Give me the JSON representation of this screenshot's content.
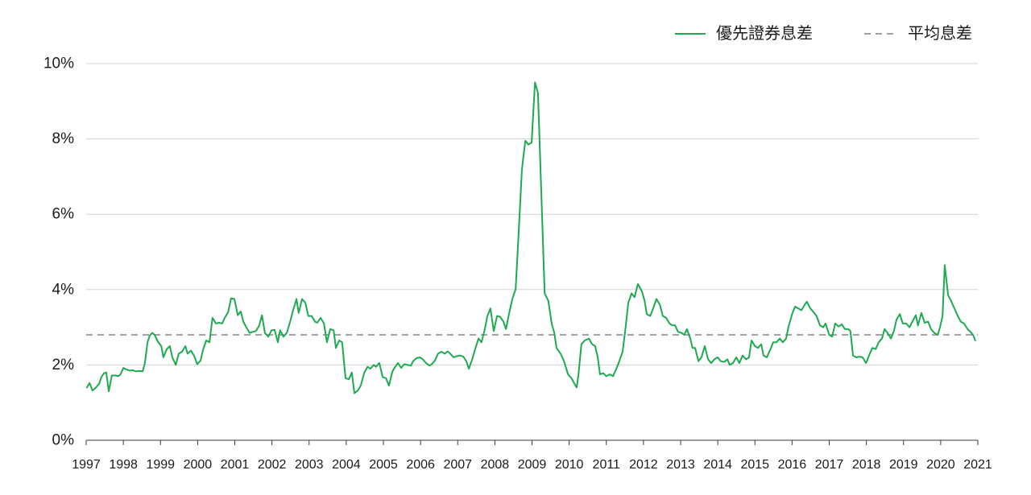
{
  "colors": {
    "grid": "#d2d2d2",
    "axis": "#3a3a3a",
    "text": "#1a1a1a"
  },
  "chart_data": {
    "type": "line",
    "xlim": [
      1997,
      2021
    ],
    "ylim": [
      0,
      10
    ],
    "x_ticks": [
      "1997",
      "1998",
      "1999",
      "2000",
      "2001",
      "2002",
      "2003",
      "2004",
      "2005",
      "2006",
      "2007",
      "2008",
      "2009",
      "2010",
      "2011",
      "2012",
      "2013",
      "2014",
      "2015",
      "2016",
      "2017",
      "2018",
      "2019",
      "2020",
      "2021"
    ],
    "y_ticks": [
      "0%",
      "2%",
      "4%",
      "6%",
      "8%",
      "10%"
    ],
    "grid": true,
    "legend_position": "top-right",
    "series": [
      {
        "name": "優先證券息差",
        "style": "solid",
        "color": "#1eaa50",
        "points": [
          [
            1997.02,
            1.4
          ],
          [
            1997.09,
            1.52
          ],
          [
            1997.17,
            1.32
          ],
          [
            1997.26,
            1.4
          ],
          [
            1997.35,
            1.5
          ],
          [
            1997.41,
            1.68
          ],
          [
            1997.48,
            1.78
          ],
          [
            1997.54,
            1.8
          ],
          [
            1997.61,
            1.3
          ],
          [
            1997.69,
            1.72
          ],
          [
            1997.78,
            1.72
          ],
          [
            1997.87,
            1.7
          ],
          [
            1997.93,
            1.76
          ],
          [
            1998.0,
            1.92
          ],
          [
            1998.08,
            1.88
          ],
          [
            1998.17,
            1.85
          ],
          [
            1998.26,
            1.86
          ],
          [
            1998.34,
            1.83
          ],
          [
            1998.43,
            1.84
          ],
          [
            1998.52,
            1.83
          ],
          [
            1998.58,
            2.05
          ],
          [
            1998.65,
            2.6
          ],
          [
            1998.71,
            2.78
          ],
          [
            1998.78,
            2.85
          ],
          [
            1998.84,
            2.8
          ],
          [
            1998.93,
            2.62
          ],
          [
            1999.02,
            2.5
          ],
          [
            1999.08,
            2.2
          ],
          [
            1999.17,
            2.42
          ],
          [
            1999.25,
            2.5
          ],
          [
            1999.32,
            2.2
          ],
          [
            1999.41,
            2.0
          ],
          [
            1999.49,
            2.3
          ],
          [
            1999.58,
            2.35
          ],
          [
            1999.67,
            2.5
          ],
          [
            1999.73,
            2.3
          ],
          [
            1999.82,
            2.38
          ],
          [
            1999.9,
            2.25
          ],
          [
            1999.99,
            2.02
          ],
          [
            2000.08,
            2.12
          ],
          [
            2000.14,
            2.38
          ],
          [
            2000.23,
            2.65
          ],
          [
            2000.32,
            2.6
          ],
          [
            2000.4,
            3.25
          ],
          [
            2000.49,
            3.1
          ],
          [
            2000.58,
            3.12
          ],
          [
            2000.66,
            3.1
          ],
          [
            2000.73,
            3.25
          ],
          [
            2000.82,
            3.4
          ],
          [
            2000.9,
            3.77
          ],
          [
            2000.99,
            3.75
          ],
          [
            2001.08,
            3.32
          ],
          [
            2001.16,
            3.42
          ],
          [
            2001.23,
            3.15
          ],
          [
            2001.31,
            3.0
          ],
          [
            2001.4,
            2.85
          ],
          [
            2001.49,
            2.88
          ],
          [
            2001.57,
            2.9
          ],
          [
            2001.66,
            3.05
          ],
          [
            2001.73,
            3.32
          ],
          [
            2001.81,
            2.85
          ],
          [
            2001.9,
            2.75
          ],
          [
            2001.99,
            2.92
          ],
          [
            2002.07,
            2.93
          ],
          [
            2002.16,
            2.6
          ],
          [
            2002.22,
            2.92
          ],
          [
            2002.31,
            2.75
          ],
          [
            2002.4,
            2.85
          ],
          [
            2002.49,
            3.15
          ],
          [
            2002.57,
            3.45
          ],
          [
            2002.66,
            3.75
          ],
          [
            2002.72,
            3.38
          ],
          [
            2002.81,
            3.75
          ],
          [
            2002.9,
            3.65
          ],
          [
            2002.98,
            3.3
          ],
          [
            2003.07,
            3.3
          ],
          [
            2003.16,
            3.15
          ],
          [
            2003.22,
            3.12
          ],
          [
            2003.31,
            3.25
          ],
          [
            2003.4,
            3.1
          ],
          [
            2003.48,
            2.6
          ],
          [
            2003.57,
            2.95
          ],
          [
            2003.66,
            2.92
          ],
          [
            2003.72,
            2.45
          ],
          [
            2003.81,
            2.65
          ],
          [
            2003.89,
            2.6
          ],
          [
            2003.98,
            1.65
          ],
          [
            2004.07,
            1.62
          ],
          [
            2004.15,
            1.8
          ],
          [
            2004.22,
            1.25
          ],
          [
            2004.31,
            1.32
          ],
          [
            2004.39,
            1.45
          ],
          [
            2004.48,
            1.78
          ],
          [
            2004.57,
            1.95
          ],
          [
            2004.65,
            1.9
          ],
          [
            2004.74,
            2.0
          ],
          [
            2004.8,
            1.95
          ],
          [
            2004.89,
            2.05
          ],
          [
            2004.98,
            1.68
          ],
          [
            2005.07,
            1.65
          ],
          [
            2005.15,
            1.45
          ],
          [
            2005.24,
            1.82
          ],
          [
            2005.3,
            1.92
          ],
          [
            2005.39,
            2.05
          ],
          [
            2005.48,
            1.92
          ],
          [
            2005.56,
            2.02
          ],
          [
            2005.65,
            2.0
          ],
          [
            2005.74,
            1.98
          ],
          [
            2005.8,
            2.1
          ],
          [
            2005.89,
            2.18
          ],
          [
            2005.98,
            2.2
          ],
          [
            2006.06,
            2.15
          ],
          [
            2006.15,
            2.05
          ],
          [
            2006.24,
            1.98
          ],
          [
            2006.3,
            2.02
          ],
          [
            2006.39,
            2.12
          ],
          [
            2006.47,
            2.3
          ],
          [
            2006.56,
            2.35
          ],
          [
            2006.65,
            2.3
          ],
          [
            2006.73,
            2.36
          ],
          [
            2006.8,
            2.3
          ],
          [
            2006.89,
            2.2
          ],
          [
            2006.97,
            2.23
          ],
          [
            2007.06,
            2.25
          ],
          [
            2007.15,
            2.22
          ],
          [
            2007.23,
            2.1
          ],
          [
            2007.3,
            1.9
          ],
          [
            2007.38,
            2.12
          ],
          [
            2007.47,
            2.42
          ],
          [
            2007.56,
            2.7
          ],
          [
            2007.64,
            2.6
          ],
          [
            2007.73,
            2.95
          ],
          [
            2007.8,
            3.3
          ],
          [
            2007.88,
            3.5
          ],
          [
            2007.97,
            2.9
          ],
          [
            2008.06,
            3.3
          ],
          [
            2008.14,
            3.28
          ],
          [
            2008.23,
            3.15
          ],
          [
            2008.3,
            2.95
          ],
          [
            2008.38,
            3.35
          ],
          [
            2008.47,
            3.75
          ],
          [
            2008.56,
            4.02
          ],
          [
            2008.64,
            5.5
          ],
          [
            2008.73,
            7.2
          ],
          [
            2008.82,
            7.95
          ],
          [
            2008.9,
            7.85
          ],
          [
            2008.99,
            7.9
          ],
          [
            2009.08,
            9.5
          ],
          [
            2009.16,
            9.22
          ],
          [
            2009.25,
            6.6
          ],
          [
            2009.34,
            3.9
          ],
          [
            2009.44,
            3.7
          ],
          [
            2009.53,
            3.1
          ],
          [
            2009.6,
            2.85
          ],
          [
            2009.66,
            2.45
          ],
          [
            2009.77,
            2.3
          ],
          [
            2009.86,
            2.1
          ],
          [
            2009.97,
            1.75
          ],
          [
            2010.06,
            1.65
          ],
          [
            2010.2,
            1.4
          ],
          [
            2010.25,
            1.75
          ],
          [
            2010.33,
            2.55
          ],
          [
            2010.42,
            2.65
          ],
          [
            2010.53,
            2.7
          ],
          [
            2010.62,
            2.55
          ],
          [
            2010.7,
            2.5
          ],
          [
            2010.77,
            2.2
          ],
          [
            2010.83,
            1.75
          ],
          [
            2010.92,
            1.78
          ],
          [
            2011.0,
            1.7
          ],
          [
            2011.09,
            1.75
          ],
          [
            2011.18,
            1.7
          ],
          [
            2011.27,
            1.9
          ],
          [
            2011.35,
            2.1
          ],
          [
            2011.44,
            2.35
          ],
          [
            2011.52,
            3.0
          ],
          [
            2011.59,
            3.65
          ],
          [
            2011.68,
            3.9
          ],
          [
            2011.76,
            3.8
          ],
          [
            2011.85,
            4.15
          ],
          [
            2011.96,
            3.95
          ],
          [
            2012.03,
            3.7
          ],
          [
            2012.09,
            3.35
          ],
          [
            2012.18,
            3.3
          ],
          [
            2012.26,
            3.5
          ],
          [
            2012.35,
            3.75
          ],
          [
            2012.44,
            3.6
          ],
          [
            2012.52,
            3.3
          ],
          [
            2012.61,
            3.25
          ],
          [
            2012.7,
            3.1
          ],
          [
            2012.78,
            3.05
          ],
          [
            2012.85,
            3.05
          ],
          [
            2012.93,
            2.88
          ],
          [
            2013.02,
            2.85
          ],
          [
            2013.1,
            2.8
          ],
          [
            2013.17,
            2.95
          ],
          [
            2013.26,
            2.7
          ],
          [
            2013.32,
            2.45
          ],
          [
            2013.39,
            2.45
          ],
          [
            2013.48,
            2.1
          ],
          [
            2013.56,
            2.2
          ],
          [
            2013.65,
            2.5
          ],
          [
            2013.74,
            2.15
          ],
          [
            2013.82,
            2.05
          ],
          [
            2013.91,
            2.15
          ],
          [
            2014.0,
            2.2
          ],
          [
            2014.08,
            2.1
          ],
          [
            2014.17,
            2.08
          ],
          [
            2014.26,
            2.15
          ],
          [
            2014.32,
            2.0
          ],
          [
            2014.41,
            2.05
          ],
          [
            2014.5,
            2.2
          ],
          [
            2014.58,
            2.05
          ],
          [
            2014.67,
            2.25
          ],
          [
            2014.76,
            2.15
          ],
          [
            2014.84,
            2.2
          ],
          [
            2014.91,
            2.65
          ],
          [
            2015.0,
            2.5
          ],
          [
            2015.08,
            2.45
          ],
          [
            2015.17,
            2.55
          ],
          [
            2015.23,
            2.25
          ],
          [
            2015.32,
            2.2
          ],
          [
            2015.41,
            2.4
          ],
          [
            2015.49,
            2.6
          ],
          [
            2015.58,
            2.6
          ],
          [
            2015.67,
            2.7
          ],
          [
            2015.75,
            2.6
          ],
          [
            2015.84,
            2.7
          ],
          [
            2015.9,
            3.0
          ],
          [
            2016.0,
            3.35
          ],
          [
            2016.08,
            3.55
          ],
          [
            2016.17,
            3.5
          ],
          [
            2016.25,
            3.45
          ],
          [
            2016.34,
            3.6
          ],
          [
            2016.4,
            3.68
          ],
          [
            2016.49,
            3.5
          ],
          [
            2016.58,
            3.4
          ],
          [
            2016.66,
            3.3
          ],
          [
            2016.75,
            3.05
          ],
          [
            2016.84,
            3.0
          ],
          [
            2016.9,
            3.1
          ],
          [
            2017.0,
            2.8
          ],
          [
            2017.08,
            2.75
          ],
          [
            2017.16,
            3.1
          ],
          [
            2017.25,
            3.02
          ],
          [
            2017.34,
            3.08
          ],
          [
            2017.42,
            2.95
          ],
          [
            2017.51,
            2.95
          ],
          [
            2017.57,
            2.9
          ],
          [
            2017.64,
            2.25
          ],
          [
            2017.73,
            2.2
          ],
          [
            2017.81,
            2.22
          ],
          [
            2017.9,
            2.2
          ],
          [
            2017.99,
            2.05
          ],
          [
            2018.07,
            2.25
          ],
          [
            2018.16,
            2.45
          ],
          [
            2018.25,
            2.42
          ],
          [
            2018.33,
            2.6
          ],
          [
            2018.42,
            2.7
          ],
          [
            2018.49,
            2.95
          ],
          [
            2018.57,
            2.85
          ],
          [
            2018.66,
            2.7
          ],
          [
            2018.74,
            2.9
          ],
          [
            2018.81,
            3.2
          ],
          [
            2018.9,
            3.35
          ],
          [
            2018.98,
            3.1
          ],
          [
            2019.07,
            3.1
          ],
          [
            2019.16,
            3.0
          ],
          [
            2019.24,
            3.15
          ],
          [
            2019.33,
            3.32
          ],
          [
            2019.39,
            3.05
          ],
          [
            2019.48,
            3.38
          ],
          [
            2019.57,
            3.12
          ],
          [
            2019.66,
            3.15
          ],
          [
            2019.74,
            2.95
          ],
          [
            2019.83,
            2.85
          ],
          [
            2019.92,
            2.8
          ],
          [
            2019.98,
            3.0
          ],
          [
            2020.05,
            3.3
          ],
          [
            2020.11,
            4.65
          ],
          [
            2020.2,
            3.85
          ],
          [
            2020.28,
            3.7
          ],
          [
            2020.37,
            3.5
          ],
          [
            2020.46,
            3.3
          ],
          [
            2020.54,
            3.15
          ],
          [
            2020.63,
            3.1
          ],
          [
            2020.72,
            2.95
          ],
          [
            2020.8,
            2.88
          ],
          [
            2020.87,
            2.8
          ],
          [
            2020.93,
            2.65
          ]
        ]
      },
      {
        "name": "平均息差",
        "style": "dashed",
        "color": "#a0a0a8",
        "value": 2.8
      }
    ]
  }
}
